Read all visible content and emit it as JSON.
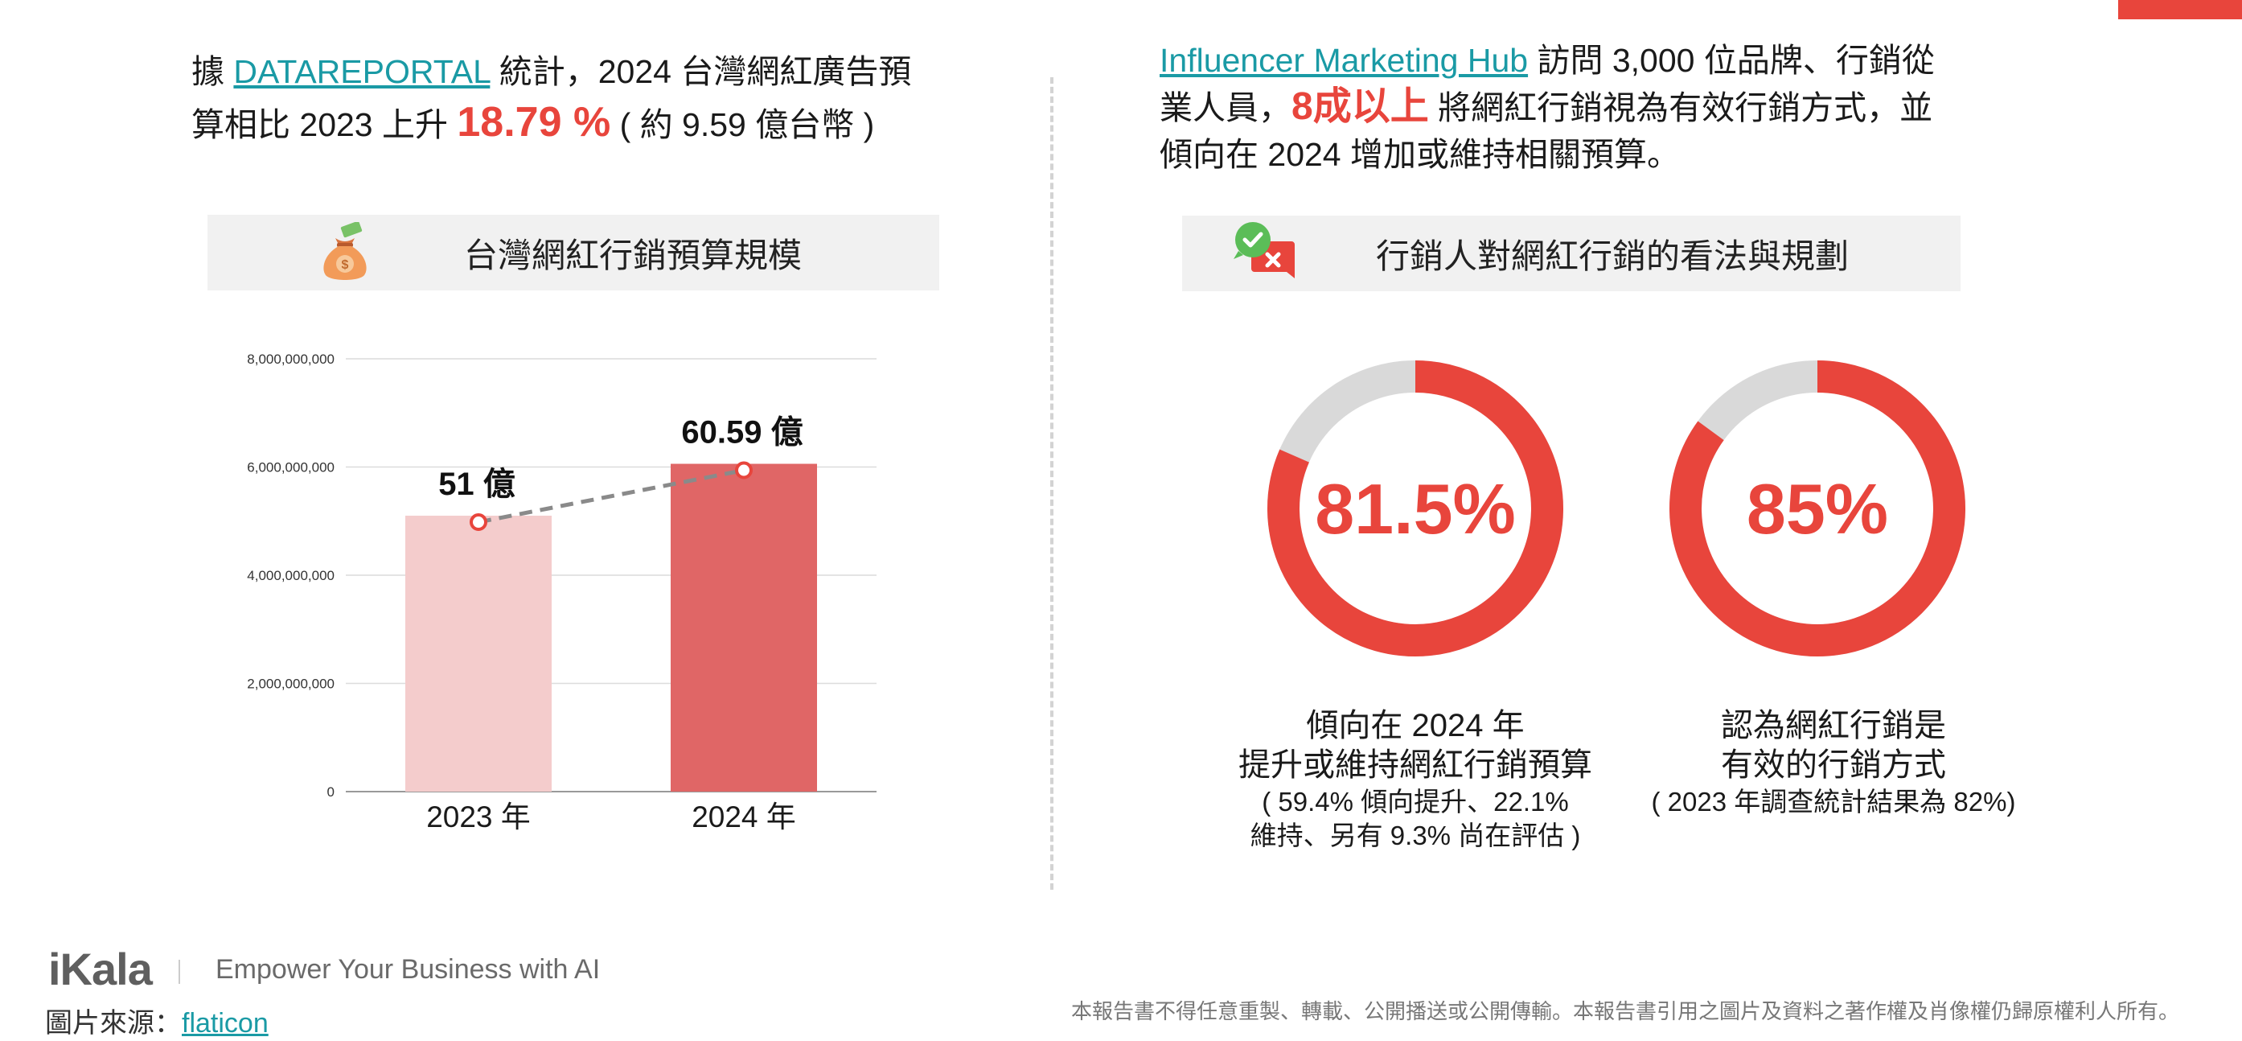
{
  "left": {
    "intro": {
      "prefix": "據 ",
      "link": "DATAREPORTAL",
      "text1": " 統計，2024 台灣網紅廣告預",
      "text2": "算相比 2023 上升 ",
      "highlight": "18.79 %",
      "text3": " ( 約 9.59 億台幣 )"
    },
    "header": {
      "title": "台灣網紅行銷預算規模",
      "icon": "money-bag-icon"
    }
  },
  "right": {
    "intro": {
      "link": "Influencer Marketing Hub",
      "text1": " 訪問 3,000 位品牌、行銷從",
      "text2": "業人員，",
      "highlight": "8成以上",
      "text3": " 將網紅行銷視為有效行銷方式，並",
      "text4": "傾向在 2024 增加或維持相關預算。"
    },
    "header": {
      "title": "行銷人對網紅行銷的看法與規劃",
      "icon": "check-cross-chat-icon"
    },
    "caption1": {
      "line1": "傾向在 2024 年",
      "line2": "提升或維持網紅行銷預算",
      "sub1": "( 59.4% 傾向提升、22.1%",
      "sub2": "維持、另有 9.3% 尚在評估 )"
    },
    "caption2": {
      "line1": "認為網紅行銷是",
      "line2": "有效的行銷方式",
      "sub1": "( 2023 年調查統計結果為 82%)"
    }
  },
  "chart_data": [
    {
      "type": "bar",
      "title": "台灣網紅行銷預算規模",
      "categories": [
        "2023 年",
        "2024 年"
      ],
      "values": [
        5100000000,
        6059000000
      ],
      "data_labels": [
        "51 億",
        "60.59 億"
      ],
      "ylim": [
        0,
        8000000000
      ],
      "yticks": [
        0,
        2000000000,
        4000000000,
        6000000000,
        8000000000
      ],
      "ytick_labels": [
        "0",
        "2,000,000,000",
        "4,000,000,000",
        "6,000,000,000",
        "8,000,000,000"
      ],
      "grid": true,
      "colors": [
        "#f4cccc",
        "#e06666"
      ],
      "trend_line": true
    },
    {
      "type": "pie",
      "subtype": "donut",
      "value_label": "81.5%",
      "values": [
        81.5,
        18.5
      ],
      "colors": [
        "#e8453c",
        "#d9d9d9"
      ]
    },
    {
      "type": "pie",
      "subtype": "donut",
      "value_label": "85%",
      "values": [
        85,
        15
      ],
      "colors": [
        "#e8453c",
        "#d9d9d9"
      ]
    }
  ],
  "footer": {
    "logo": "iKala",
    "tagline": "Empower Your Business with AI",
    "source_label": "圖片來源：",
    "source_link": "flaticon",
    "disclaimer": "本報告書不得任意重製、轉載、公開播送或公開傳輸。本報告書引用之圖片及資料之著作權及肖像權仍歸原權利人所有。"
  },
  "colors": {
    "accent": "#e8453c",
    "link": "#1a9aa5"
  }
}
